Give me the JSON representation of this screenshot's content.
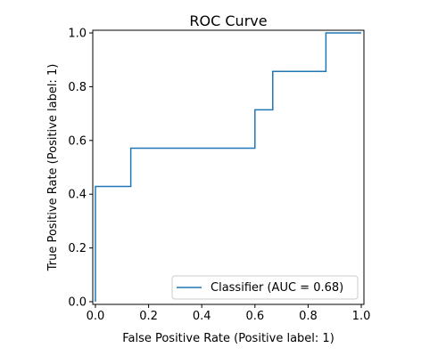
{
  "chart_data": {
    "type": "line",
    "title": "ROC Curve",
    "xlabel": "False Positive Rate (Positive label: 1)",
    "ylabel": "True Positive Rate (Positive label: 1)",
    "xlim": [
      -0.01,
      1.01
    ],
    "ylim": [
      -0.01,
      1.01
    ],
    "xticks": [
      0.0,
      0.2,
      0.4,
      0.6,
      0.8,
      1.0
    ],
    "yticks": [
      0.0,
      0.2,
      0.4,
      0.6,
      0.8,
      1.0
    ],
    "xtick_labels": [
      "0.0",
      "0.2",
      "0.4",
      "0.6",
      "0.8",
      "1.0"
    ],
    "ytick_labels": [
      "0.0",
      "0.2",
      "0.4",
      "0.6",
      "0.8",
      "1.0"
    ],
    "grid": false,
    "legend_position": "lower-right",
    "series": [
      {
        "name": "Classifier (AUC = 0.68)",
        "color": "#1f77b4",
        "x": [
          0.0,
          0.0,
          0.0,
          0.133,
          0.133,
          0.6,
          0.6,
          0.667,
          0.667,
          0.867,
          0.867,
          1.0
        ],
        "y": [
          0.0,
          0.0,
          0.429,
          0.429,
          0.571,
          0.571,
          0.714,
          0.714,
          0.857,
          0.857,
          1.0,
          1.0
        ]
      }
    ]
  }
}
